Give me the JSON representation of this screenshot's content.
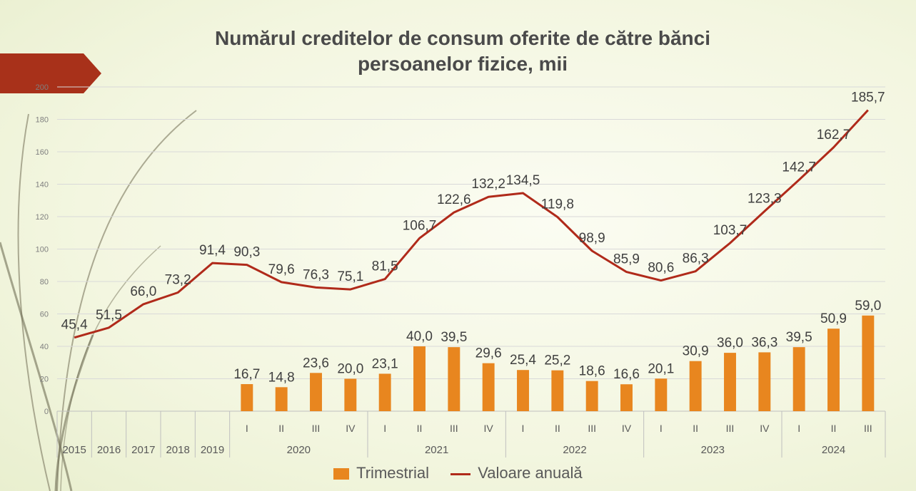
{
  "slide": {
    "title_line1": "Numărul creditelor de consum oferite de către bănci",
    "title_line2": "persoanelor fizice, mii"
  },
  "colors": {
    "bar": "#e8861f",
    "line": "#b02a1a",
    "accent_tab": "#a8311a",
    "grid": "#d9d9d9",
    "text": "#595959"
  },
  "chart_data": {
    "type": "bar+line",
    "ylim": [
      0,
      200
    ],
    "yticks": [
      0,
      20,
      40,
      60,
      80,
      100,
      120,
      140,
      160,
      180,
      200
    ],
    "categories": [
      {
        "quarter": "",
        "year": "2015"
      },
      {
        "quarter": "",
        "year": "2016"
      },
      {
        "quarter": "",
        "year": "2017"
      },
      {
        "quarter": "",
        "year": "2018"
      },
      {
        "quarter": "",
        "year": "2019"
      },
      {
        "quarter": "I",
        "year": "2020"
      },
      {
        "quarter": "II",
        "year": "2020"
      },
      {
        "quarter": "III",
        "year": "2020"
      },
      {
        "quarter": "IV",
        "year": "2020"
      },
      {
        "quarter": "I",
        "year": "2021"
      },
      {
        "quarter": "II",
        "year": "2021"
      },
      {
        "quarter": "III",
        "year": "2021"
      },
      {
        "quarter": "IV",
        "year": "2021"
      },
      {
        "quarter": "I",
        "year": "2022"
      },
      {
        "quarter": "II",
        "year": "2022"
      },
      {
        "quarter": "III",
        "year": "2022"
      },
      {
        "quarter": "IV",
        "year": "2022"
      },
      {
        "quarter": "I",
        "year": "2023"
      },
      {
        "quarter": "II",
        "year": "2023"
      },
      {
        "quarter": "III",
        "year": "2023"
      },
      {
        "quarter": "IV",
        "year": "2023"
      },
      {
        "quarter": "I",
        "year": "2024"
      },
      {
        "quarter": "II",
        "year": "2024"
      },
      {
        "quarter": "III",
        "year": "2024"
      }
    ],
    "year_groups": [
      {
        "label": "2015",
        "count": 1
      },
      {
        "label": "2016",
        "count": 1
      },
      {
        "label": "2017",
        "count": 1
      },
      {
        "label": "2018",
        "count": 1
      },
      {
        "label": "2019",
        "count": 1
      },
      {
        "label": "2020",
        "count": 4
      },
      {
        "label": "2021",
        "count": 4
      },
      {
        "label": "2022",
        "count": 4
      },
      {
        "label": "2023",
        "count": 4
      },
      {
        "label": "2024",
        "count": 3
      }
    ],
    "series": [
      {
        "name": "Trimestrial",
        "kind": "bar",
        "values": [
          null,
          null,
          null,
          null,
          null,
          16.7,
          14.8,
          23.6,
          20.0,
          23.1,
          40.0,
          39.5,
          29.6,
          25.4,
          25.2,
          18.6,
          16.6,
          20.1,
          30.9,
          36.0,
          36.3,
          39.5,
          50.9,
          59.0
        ],
        "labels": [
          "",
          "",
          "",
          "",
          "",
          "16,7",
          "14,8",
          "23,6",
          "20,0",
          "23,1",
          "40,0",
          "39,5",
          "29,6",
          "25,4",
          "25,2",
          "18,6",
          "16,6",
          "20,1",
          "30,9",
          "36,0",
          "36,3",
          "39,5",
          "50,9",
          "59,0"
        ]
      },
      {
        "name": "Valoare anuală",
        "kind": "line",
        "values": [
          45.4,
          51.5,
          66.0,
          73.2,
          91.4,
          90.3,
          79.6,
          76.3,
          75.1,
          81.5,
          106.7,
          122.6,
          132.2,
          134.5,
          119.8,
          98.9,
          85.9,
          80.6,
          86.3,
          103.7,
          123.3,
          142.7,
          162.7,
          185.7
        ],
        "labels": [
          "45,4",
          "51,5",
          "66,0",
          "73,2",
          "91,4",
          "90,3",
          "79,6",
          "76,3",
          "75,1",
          "81,5",
          "106,7",
          "122,6",
          "132,2",
          "134,5",
          "119,8",
          "98,9",
          "85,9",
          "80,6",
          "86,3",
          "103,7",
          "123,3",
          "142,7",
          "162,7",
          "185,7"
        ]
      }
    ],
    "legend": [
      "Trimestrial",
      "Valoare anuală"
    ],
    "legend_position": "bottom",
    "grid": true
  }
}
